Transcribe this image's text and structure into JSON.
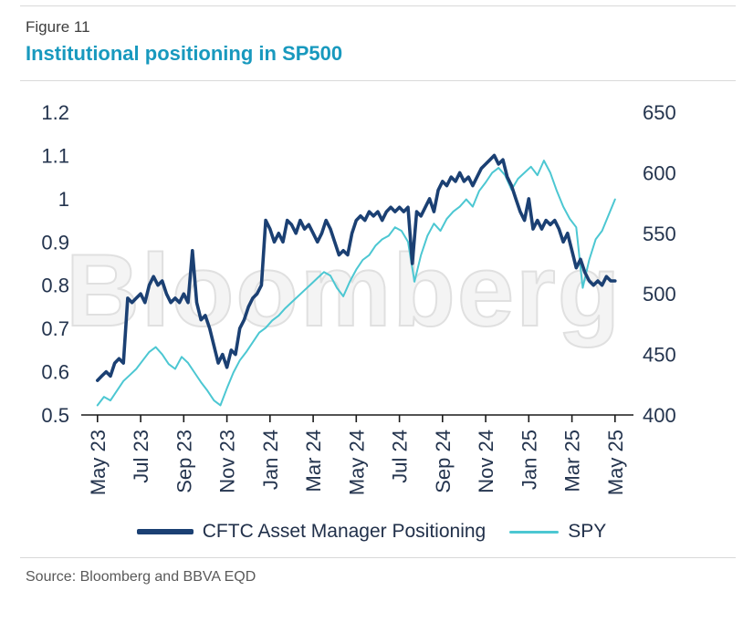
{
  "figure": {
    "label": "Figure 11",
    "title": "Institutional positioning in SP500"
  },
  "watermark": "Bloomberg",
  "source": {
    "text": "Source: Bloomberg and BBVA EQD"
  },
  "colors": {
    "title": "#1899be",
    "cftc_line": "#1b4073",
    "spy_line": "#4cc7d2",
    "axis_text": "#24344e",
    "axis_line": "#1a1a1a"
  },
  "chart_data": {
    "type": "line",
    "title": "Institutional positioning in SP500",
    "grid": false,
    "legend_position": "bottom",
    "x_axis": {
      "unit": "months since May 2023",
      "range": [
        -0.5,
        24.6
      ],
      "tick_positions": [
        0,
        2,
        4,
        6,
        8,
        10,
        12,
        14,
        16,
        18,
        20,
        22,
        24
      ],
      "tick_labels": [
        "May 23",
        "Jul 23",
        "Sep 23",
        "Nov 23",
        "Jan 24",
        "Mar 24",
        "May 24",
        "Jul 24",
        "Sep 24",
        "Nov 24",
        "Jan 25",
        "Mar 25",
        "May 25"
      ]
    },
    "left_axis": {
      "range": [
        0.5,
        1.2
      ],
      "tick_values": [
        0.5,
        0.6,
        0.7,
        0.8,
        0.9,
        1.0,
        1.1,
        1.2
      ],
      "tick_labels": [
        "0.5",
        "0.6",
        "0.7",
        "0.8",
        "0.9",
        "1",
        "1.1",
        "1.2"
      ]
    },
    "right_axis": {
      "range": [
        400,
        650
      ],
      "tick_values": [
        400,
        450,
        500,
        550,
        600,
        650
      ],
      "tick_labels": [
        "400",
        "450",
        "500",
        "550",
        "600",
        "650"
      ]
    },
    "series": [
      {
        "name": "CFTC Asset Manager Positioning",
        "axis": "left",
        "color": "#1b4073",
        "line_width": 3.6,
        "x_start": 0,
        "x_step": 0.2,
        "values": [
          0.58,
          0.59,
          0.6,
          0.59,
          0.62,
          0.63,
          0.62,
          0.77,
          0.76,
          0.77,
          0.78,
          0.76,
          0.8,
          0.82,
          0.8,
          0.81,
          0.78,
          0.76,
          0.77,
          0.76,
          0.78,
          0.76,
          0.88,
          0.76,
          0.72,
          0.73,
          0.7,
          0.66,
          0.62,
          0.64,
          0.61,
          0.65,
          0.64,
          0.7,
          0.72,
          0.75,
          0.77,
          0.78,
          0.8,
          0.95,
          0.93,
          0.9,
          0.92,
          0.9,
          0.95,
          0.94,
          0.92,
          0.95,
          0.93,
          0.94,
          0.92,
          0.9,
          0.92,
          0.95,
          0.93,
          0.9,
          0.87,
          0.88,
          0.87,
          0.92,
          0.95,
          0.96,
          0.95,
          0.97,
          0.96,
          0.97,
          0.95,
          0.97,
          0.98,
          0.97,
          0.98,
          0.97,
          0.98,
          0.85,
          0.97,
          0.96,
          0.98,
          1.0,
          0.97,
          1.02,
          1.04,
          1.03,
          1.05,
          1.04,
          1.06,
          1.04,
          1.05,
          1.03,
          1.05,
          1.07,
          1.08,
          1.09,
          1.1,
          1.08,
          1.09,
          1.05,
          1.03,
          1.0,
          0.97,
          0.95,
          1.0,
          0.93,
          0.95,
          0.93,
          0.95,
          0.94,
          0.95,
          0.93,
          0.9,
          0.92,
          0.88,
          0.84,
          0.86,
          0.83,
          0.81,
          0.8,
          0.81,
          0.8,
          0.82,
          0.81,
          0.81
        ]
      },
      {
        "name": "SPY",
        "axis": "right",
        "color": "#4cc7d2",
        "line_width": 2,
        "x_start": 0,
        "x_step": 0.3,
        "values": [
          408,
          415,
          412,
          420,
          428,
          433,
          438,
          445,
          452,
          456,
          450,
          442,
          438,
          448,
          443,
          435,
          427,
          420,
          412,
          408,
          422,
          435,
          445,
          452,
          460,
          468,
          472,
          478,
          482,
          488,
          493,
          498,
          503,
          508,
          513,
          518,
          515,
          505,
          498,
          510,
          520,
          528,
          532,
          540,
          545,
          548,
          555,
          552,
          543,
          510,
          532,
          548,
          558,
          552,
          562,
          568,
          572,
          578,
          572,
          585,
          592,
          600,
          604,
          598,
          586,
          595,
          600,
          605,
          598,
          610,
          600,
          585,
          572,
          562,
          555,
          505,
          528,
          545,
          552,
          565,
          578
        ]
      }
    ]
  }
}
